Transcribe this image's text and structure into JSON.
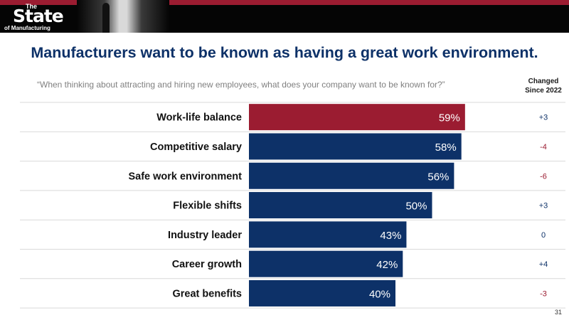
{
  "logo": {
    "line1": "The",
    "line2": "State",
    "line3": "of Manufacturing"
  },
  "title": "Manufacturers want to be known as having a great work environment.",
  "question": "“When thinking about attracting and hiring new employees, what does your company want to be known for?”",
  "changed_header": [
    "Changed",
    "Since 2022"
  ],
  "page_number": "31",
  "colors": {
    "highlight": "#9b1c31",
    "bar": "#0d3168",
    "title": "#0d3168",
    "positive": "#0d3168",
    "negative": "#9b1c31"
  },
  "chart_data": {
    "type": "bar",
    "orientation": "horizontal",
    "categories": [
      "Work-life balance",
      "Competitive salary",
      "Safe work environment",
      "Flexible shifts",
      "Industry leader",
      "Career growth",
      "Great benefits"
    ],
    "values": [
      59,
      58,
      56,
      50,
      43,
      42,
      40
    ],
    "value_labels": [
      "59%",
      "58%",
      "56%",
      "50%",
      "43%",
      "42%",
      "40%"
    ],
    "changes": [
      "+3",
      "-4",
      "-6",
      "+3",
      "0",
      "+4",
      "-3"
    ],
    "highlight_index": 0,
    "xlim": [
      0,
      100
    ]
  }
}
